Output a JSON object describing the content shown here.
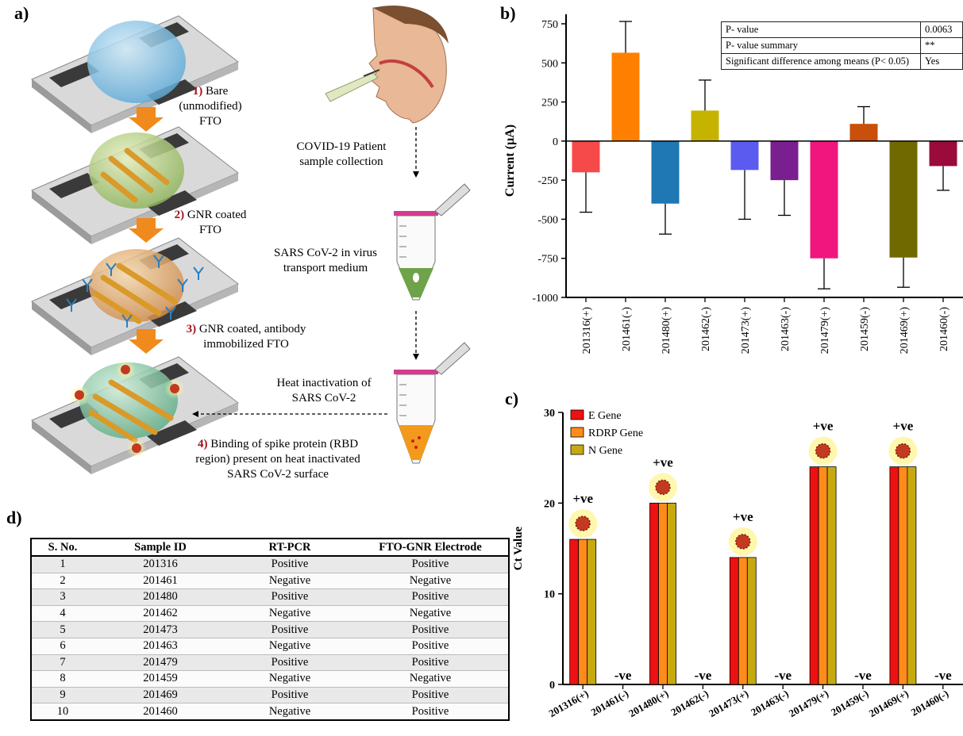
{
  "panel_labels": {
    "a": "a)",
    "b": "b)",
    "c": "c)",
    "d": "d)"
  },
  "schematic": {
    "steps": [
      {
        "num": "1)",
        "text1": "Bare (unmodified)",
        "text2": "FTO"
      },
      {
        "num": "2)",
        "text1": "GNR coated",
        "text2": "FTO"
      },
      {
        "num": "3)",
        "text1": "GNR coated, antibody",
        "text2": "immobilized FTO"
      },
      {
        "num": "4)",
        "text1": "Binding of spike protein (RBD",
        "text2": "region) present on heat inactivated",
        "text3": "SARS CoV-2 surface"
      }
    ],
    "notes": [
      {
        "l1": "COVID-19 Patient",
        "l2": "sample collection"
      },
      {
        "l1": "SARS CoV-2 in virus",
        "l2": "transport medium"
      },
      {
        "l1": "Heat inactivation of",
        "l2": "SARS CoV-2"
      }
    ],
    "colors": {
      "arrow": "#f08a1c",
      "step_number": "#a3121b",
      "tube_cap": "#d63a8f"
    }
  },
  "pvalue_table": {
    "rows": [
      {
        "label": "P- value",
        "value": "0.0063"
      },
      {
        "label": "P- value summary",
        "value": "**"
      },
      {
        "label": "Significant difference among means (P< 0.05)",
        "value": "Yes"
      }
    ]
  },
  "sample_table": {
    "headers": [
      "S. No.",
      "Sample ID",
      "RT-PCR",
      "FTO-GNR Electrode"
    ],
    "rows": [
      [
        "1",
        "201316",
        "Positive",
        "Positive"
      ],
      [
        "2",
        "201461",
        "Negative",
        "Negative"
      ],
      [
        "3",
        "201480",
        "Positive",
        "Positive"
      ],
      [
        "4",
        "201462",
        "Negative",
        "Negative"
      ],
      [
        "5",
        "201473",
        "Positive",
        "Positive"
      ],
      [
        "6",
        "201463",
        "Negative",
        "Positive"
      ],
      [
        "7",
        "201479",
        "Positive",
        "Positive"
      ],
      [
        "8",
        "201459",
        "Negative",
        "Negative"
      ],
      [
        "9",
        "201469",
        "Positive",
        "Positive"
      ],
      [
        "10",
        "201460",
        "Negative",
        "Positive"
      ]
    ]
  },
  "chart_data": [
    {
      "type": "bar",
      "ylabel": "Current (µA)",
      "ylim": [
        -1000,
        750
      ],
      "yticks": [
        750,
        500,
        250,
        0,
        -250,
        -500,
        -750,
        -1000
      ],
      "categories": [
        "201316(+)",
        "201461(-)",
        "201480(+)",
        "201462(-)",
        "201473(+)",
        "201463(-)",
        "201479(+)",
        "201459(-)",
        "201469(+)",
        "201460(-)"
      ],
      "values": [
        -200,
        565,
        -400,
        195,
        -185,
        -250,
        -750,
        110,
        -745,
        -160
      ],
      "errors": [
        255,
        200,
        195,
        195,
        315,
        225,
        195,
        110,
        190,
        155
      ],
      "colors": [
        "#f5494a",
        "#ff8000",
        "#1f77b4",
        "#c6b300",
        "#5b5bf0",
        "#7a1f8f",
        "#f0167d",
        "#c8500a",
        "#706900",
        "#9a0b3c"
      ]
    },
    {
      "type": "bar",
      "ylabel": "Ct Value",
      "ylim": [
        0,
        30
      ],
      "yticks": [
        0,
        10,
        20,
        30
      ],
      "categories": [
        "201316(+)",
        "201461(-)",
        "201480(+)",
        "201462(-)",
        "201473(+)",
        "201463(-)",
        "201479(+)",
        "201459(-)",
        "201469(+)",
        "201460(-)"
      ],
      "series": [
        {
          "name": "E Gene",
          "color": "#ee1111",
          "values": [
            16,
            0,
            20,
            0,
            14,
            0,
            24,
            0,
            24,
            0
          ]
        },
        {
          "name": "RDRP Gene",
          "color": "#ff8c1a",
          "values": [
            16,
            0,
            20,
            0,
            14,
            0,
            24,
            0,
            24,
            0
          ]
        },
        {
          "name": "N Gene",
          "color": "#c7a90f",
          "values": [
            16,
            0,
            20,
            0,
            14,
            0,
            24,
            0,
            24,
            0
          ]
        }
      ],
      "annotations": [
        "+ve",
        "-ve",
        "+ve",
        "-ve",
        "+ve",
        "-ve",
        "+ve",
        "-ve",
        "+ve",
        "-ve"
      ],
      "legend_position": "top-left"
    }
  ]
}
